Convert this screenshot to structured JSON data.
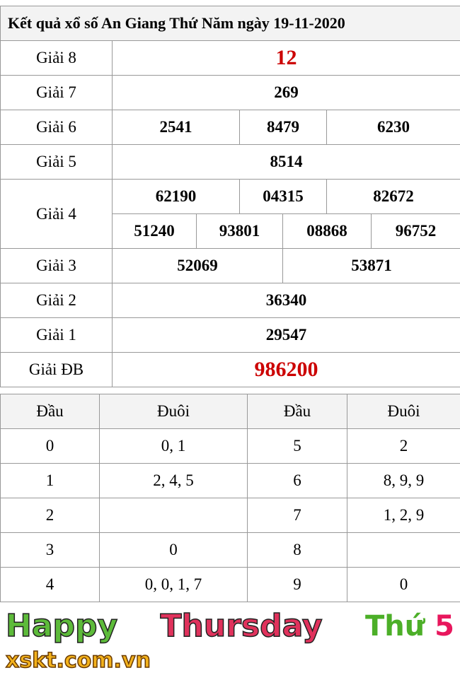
{
  "title": "Kết quả xổ số An Giang Thứ Năm ngày 19-11-2020",
  "prizes": {
    "g8": {
      "label": "Giải 8",
      "values": [
        "12"
      ]
    },
    "g7": {
      "label": "Giải 7",
      "values": [
        "269"
      ]
    },
    "g6": {
      "label": "Giải 6",
      "values": [
        "2541",
        "8479",
        "6230"
      ]
    },
    "g5": {
      "label": "Giải 5",
      "values": [
        "8514"
      ]
    },
    "g4": {
      "label": "Giải 4",
      "values": [
        "62190",
        "04315",
        "82672",
        "51240",
        "93801",
        "08868",
        "96752"
      ]
    },
    "g3": {
      "label": "Giải 3",
      "values": [
        "52069",
        "53871"
      ]
    },
    "g2": {
      "label": "Giải 2",
      "values": [
        "36340"
      ]
    },
    "g1": {
      "label": "Giải 1",
      "values": [
        "29547"
      ]
    },
    "gdb": {
      "label": "Giải ĐB",
      "values": [
        "986200"
      ]
    }
  },
  "loto": {
    "headers": [
      "Đầu",
      "Đuôi",
      "Đầu",
      "Đuôi"
    ],
    "rows": [
      {
        "d1": "0",
        "t1": "0, 1",
        "d2": "5",
        "t2": "2"
      },
      {
        "d1": "1",
        "t1": "2, 4, 5",
        "d2": "6",
        "t2": "8, 9, 9"
      },
      {
        "d1": "2",
        "t1": "",
        "d2": "7",
        "t2": "1, 2, 9"
      },
      {
        "d1": "3",
        "t1": "0",
        "d2": "8",
        "t2": ""
      },
      {
        "d1": "4",
        "t1": "0, 0, 1, 7",
        "d2": "9",
        "t2": "0"
      }
    ]
  },
  "watermark": {
    "happy": "Happy",
    "thursday": "Thursday",
    "thu": "Thứ",
    "five": "5",
    "logo": "xskt.com.vn"
  },
  "colors": {
    "special": "#cc0000",
    "header_bg": "#f3f3f3"
  }
}
